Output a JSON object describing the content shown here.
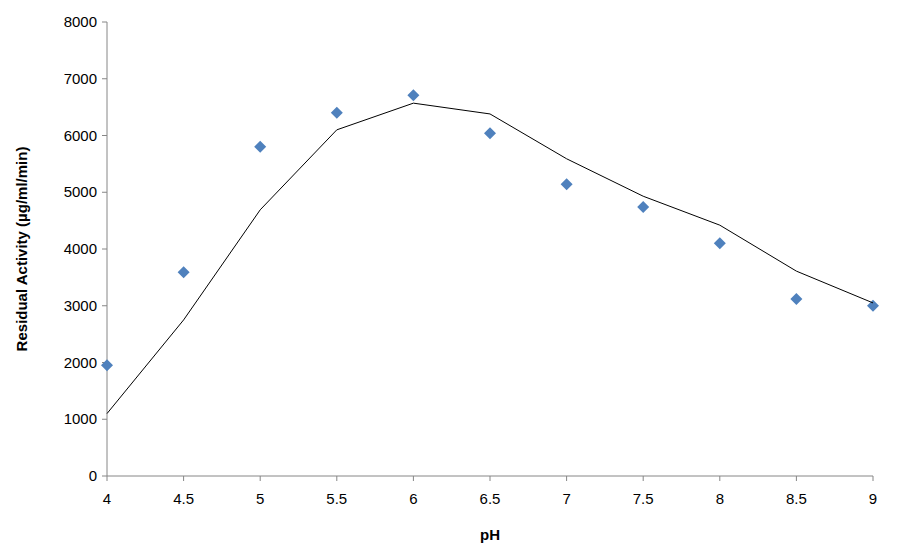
{
  "chart_data": {
    "type": "scatter",
    "x_label": "pH",
    "y_label": "Residual Activity (µg/ml/min)",
    "x": [
      4,
      4.5,
      5,
      5.5,
      6,
      6.5,
      7,
      7.5,
      8,
      8.5,
      9
    ],
    "series": [
      {
        "type": "scatter",
        "marker": "diamond",
        "color": "#4f81bd",
        "values": [
          1950,
          3590,
          5800,
          6400,
          6710,
          6040,
          5140,
          4740,
          4100,
          3120,
          3000
        ]
      },
      {
        "type": "line",
        "line_style": "solid",
        "color": "#000000",
        "values": [
          1100,
          2750,
          4690,
          6100,
          6570,
          6380,
          5590,
          4930,
          4420,
          3610,
          3050
        ]
      }
    ],
    "xlim": [
      4,
      9
    ],
    "xticks": [
      4,
      4.5,
      5,
      5.5,
      6,
      6.5,
      7,
      7.5,
      8,
      8.5,
      9
    ],
    "ylim": [
      0,
      8000
    ],
    "yticks": [
      0,
      1000,
      2000,
      3000,
      4000,
      5000,
      6000,
      7000,
      8000
    ],
    "grid": false
  }
}
